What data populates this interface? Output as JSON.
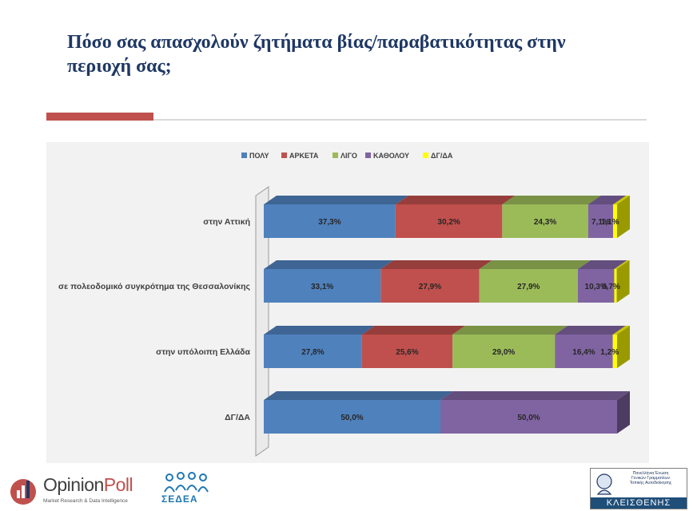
{
  "header": {
    "title_line1": "Πόσο σας απασχολούν ζητήματα βίας/παραβατικότητας στην",
    "title_line2": "περιοχή σας;"
  },
  "chart_data": {
    "type": "bar",
    "orientation": "horizontal",
    "stacked": true,
    "percent_stacked": true,
    "title": "Πόσο σας απασχολούν ζητήματα βίας/παραβατικότητας στην περιοχή σας;",
    "categories": [
      "στην Αττική",
      "σε πολεοδομικό συγκρότημα της Θεσσαλονίκης",
      "στην υπόλοιπη Ελλάδα",
      "ΔΓ/ΔΑ"
    ],
    "series": [
      {
        "name": "ΠΟΛΥ",
        "color": "#4f81bd",
        "values": [
          37.3,
          33.1,
          27.8,
          50.0
        ],
        "labels": [
          "37,3%",
          "33,1%",
          "27,8%",
          "50,0%"
        ]
      },
      {
        "name": "ΑΡΚΕΤΑ",
        "color": "#c0504d",
        "values": [
          30.2,
          27.9,
          25.6,
          0
        ],
        "labels": [
          "30,2%",
          "27,9%",
          "25,6%",
          ""
        ]
      },
      {
        "name": "ΛΙΓΟ",
        "color": "#9bbb59",
        "values": [
          24.3,
          27.9,
          29.0,
          0
        ],
        "labels": [
          "24,3%",
          "27,9%",
          "29,0%",
          ""
        ]
      },
      {
        "name": "ΚΑΘΟΛΟΥ",
        "color": "#8064a2",
        "values": [
          7.1,
          10.3,
          16.4,
          50.0
        ],
        "labels": [
          "7,1%",
          "10,3%",
          "16,4%",
          "50,0%"
        ]
      },
      {
        "name": "ΔΓ/ΔΑ",
        "color": "#ffff00",
        "values": [
          1.1,
          0.7,
          1.2,
          0
        ],
        "labels": [
          "1,1%",
          "0,7%",
          "1,2%",
          ""
        ]
      }
    ],
    "xlim": [
      0,
      100
    ],
    "legend_position": "top"
  },
  "footer": {
    "opinionpoll_name_a": "Opinion",
    "opinionpoll_name_b": "Poll",
    "opinionpoll_tagline": "Market Research & Data Intelligence",
    "sedea_name": "ΣΕΔΕΑ",
    "kleisthenis_line1": "Πανελλήνια Ένωση",
    "kleisthenis_line2": "Γενικών Γραμματέων",
    "kleisthenis_line3": "Τοπικής Αυτοδιοίκησης",
    "kleisthenis_name": "ΚΛΕΙΣΘΕΝΗΣ"
  }
}
